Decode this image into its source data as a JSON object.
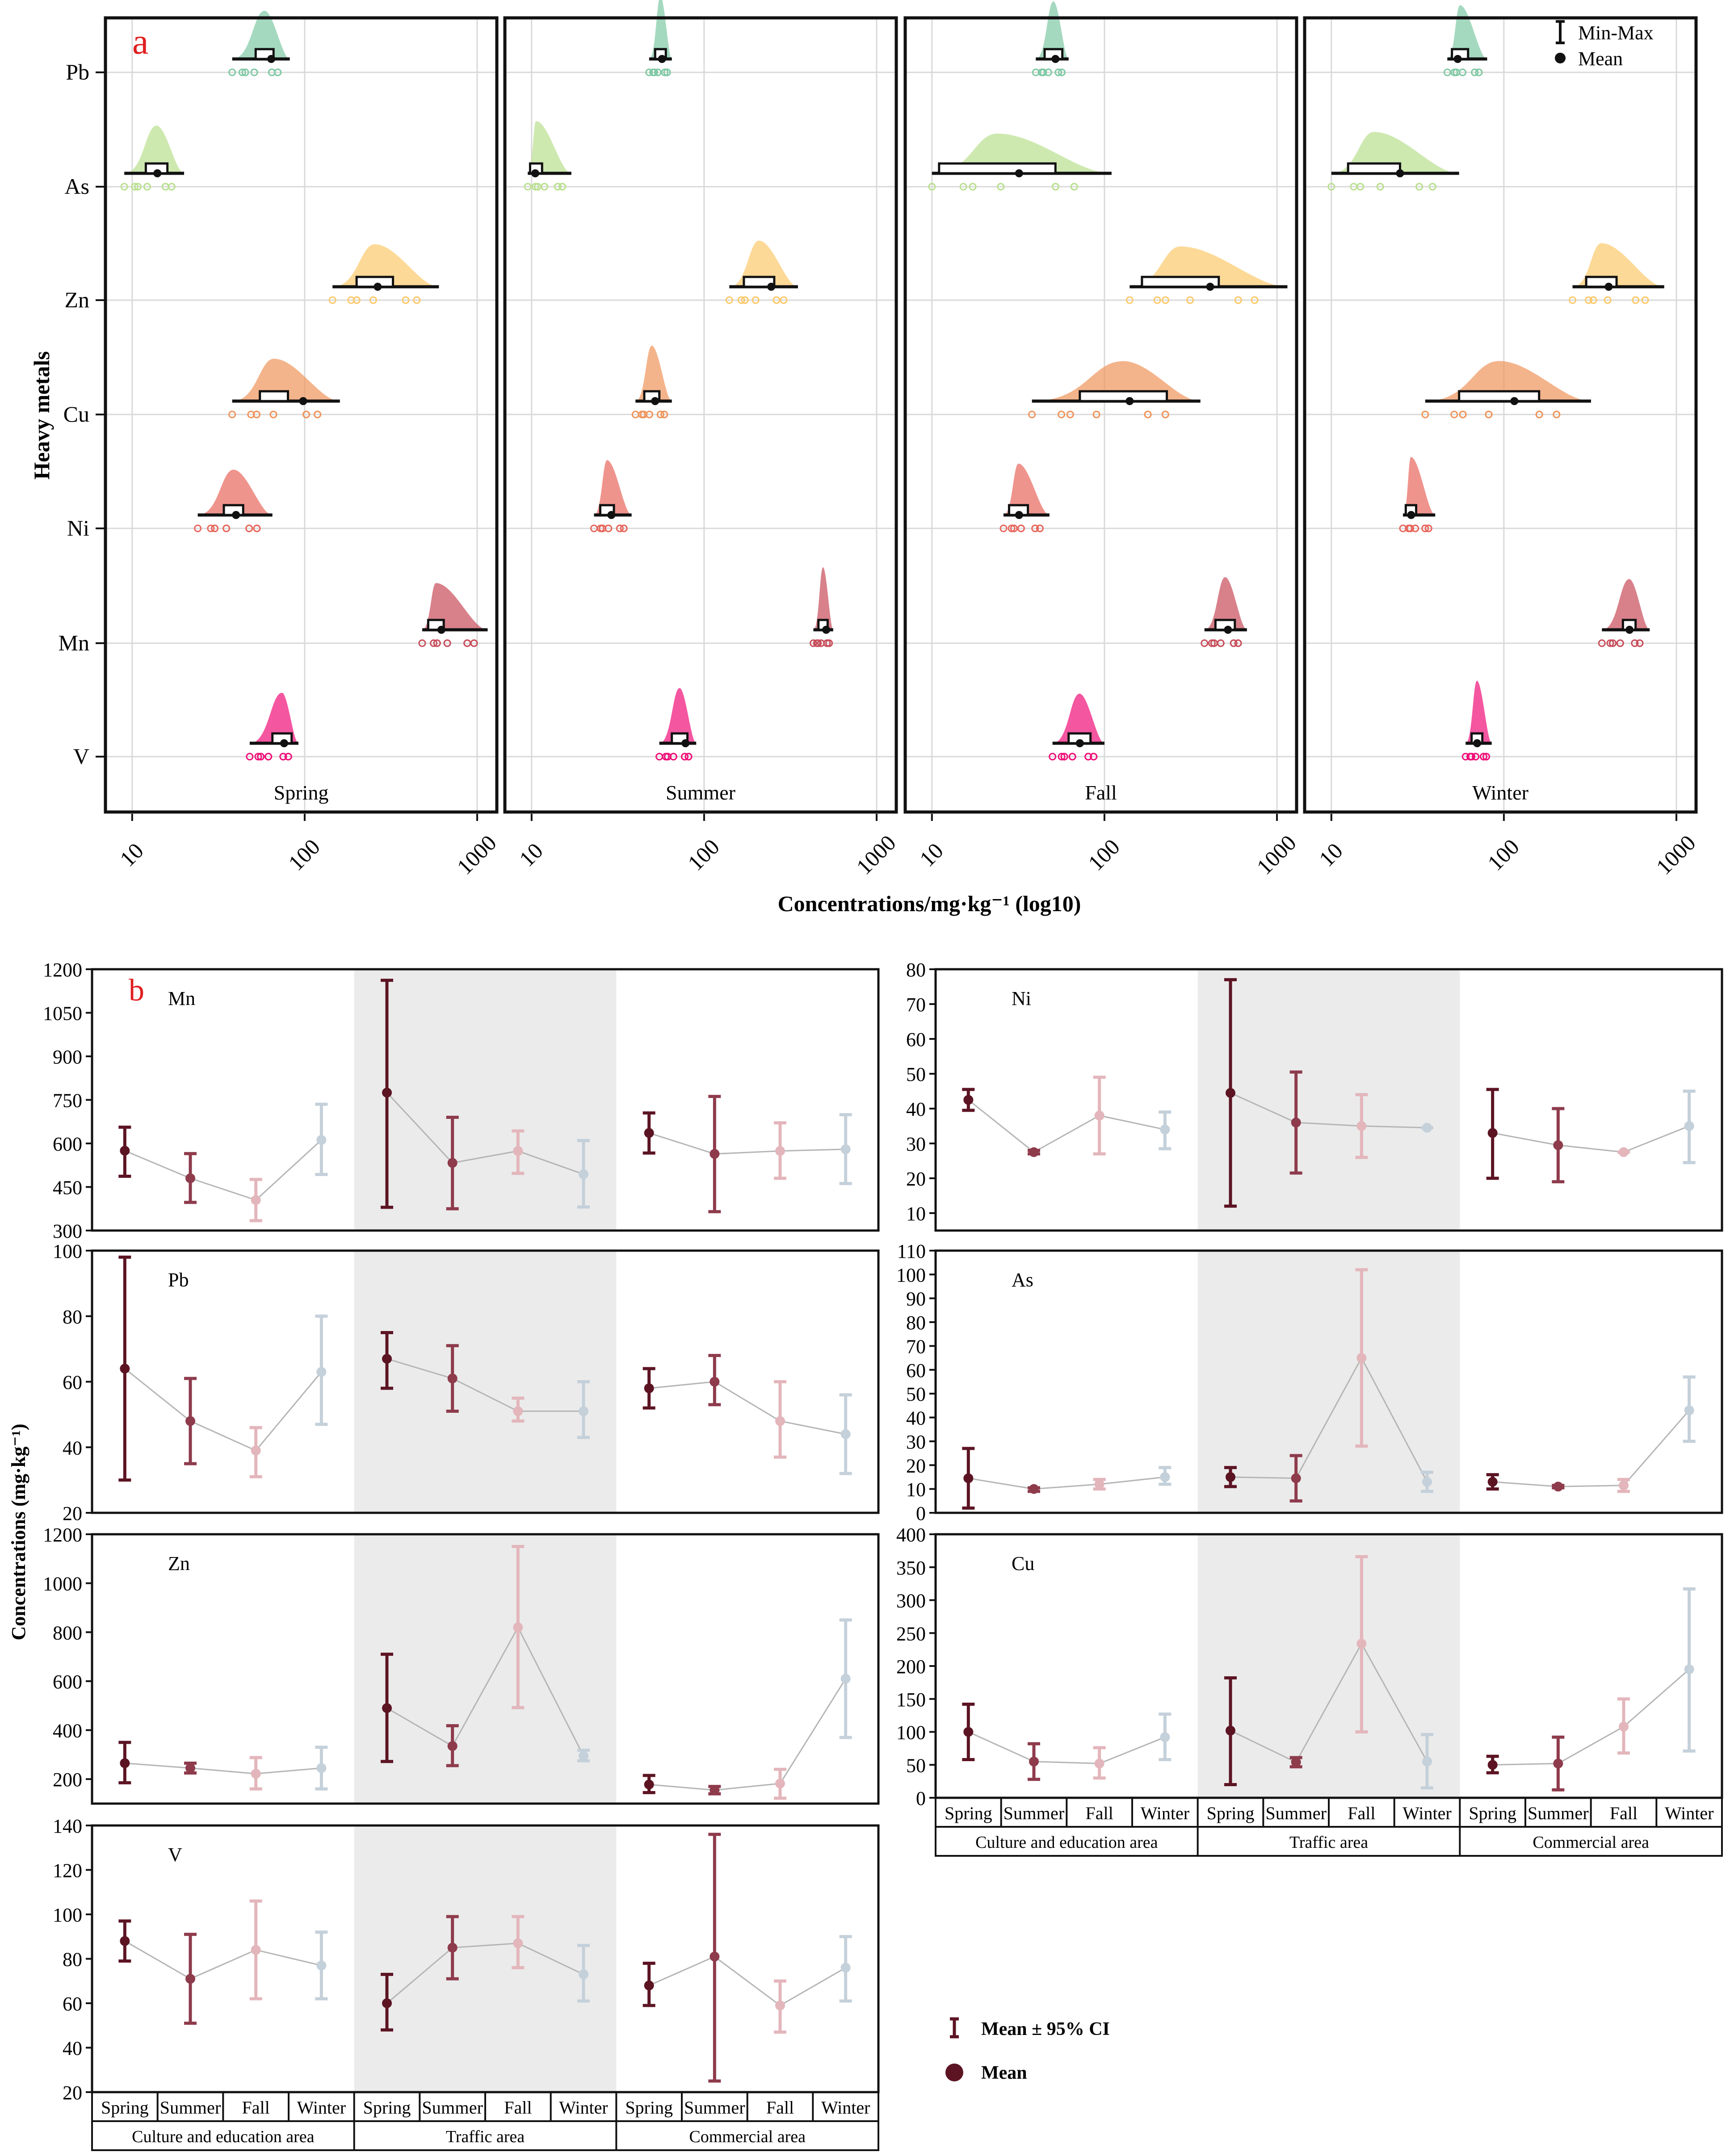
{
  "panel_a": {
    "letter": "a",
    "ylabel": "Heavy metals",
    "xlabel": "Concentrations/mg·kg⁻¹ (log10)",
    "xticks": [
      10,
      100,
      1000
    ],
    "legend": {
      "minmax": "Min-Max",
      "mean": "Mean"
    }
  },
  "panel_b": {
    "letter": "b",
    "ylabel": "Concentrations (mg·kg⁻¹)",
    "seasons": [
      "Spring",
      "Summer",
      "Fall",
      "Winter"
    ],
    "areas": [
      "Culture and education area",
      "Traffic area",
      "Commercial area"
    ],
    "legend": {
      "ci": "Mean ± 95% CI",
      "mean": "Mean"
    }
  },
  "chart_data": [
    {
      "type": "raincloud",
      "panel": "a",
      "metals": [
        "Pb",
        "As",
        "Zn",
        "Cu",
        "Ni",
        "Mn",
        "V"
      ],
      "seasons": [
        "Spring",
        "Summer",
        "Fall",
        "Winter"
      ],
      "xscale": "log10",
      "xlim": [
        7,
        1300
      ],
      "colors": {
        "Pb": "#7fc9a4",
        "As": "#b9e08f",
        "Zn": "#fcc96b",
        "Cu": "#f0945a",
        "Ni": "#e8665c",
        "Mn": "#c84c5a",
        "V": "#f00e78"
      },
      "series": [
        {
          "name": "Spring",
          "data": {
            "Pb": {
              "min": 38,
              "max": 82,
              "q1": 52,
              "q3": 66,
              "mean": 64
            },
            "As": {
              "min": 9,
              "max": 20,
              "q1": 12,
              "q3": 16,
              "mean": 14
            },
            "Zn": {
              "min": 145,
              "max": 600,
              "q1": 200,
              "q3": 325,
              "mean": 265
            },
            "Cu": {
              "min": 38,
              "max": 160,
              "q1": 55,
              "q3": 80,
              "mean": 98
            },
            "Ni": {
              "min": 24,
              "max": 65,
              "q1": 34,
              "q3": 44,
              "mean": 40
            },
            "Mn": {
              "min": 480,
              "max": 1150,
              "q1": 520,
              "q3": 640,
              "mean": 620
            },
            "V": {
              "min": 48,
              "max": 92,
              "q1": 65,
              "q3": 84,
              "mean": 76
            }
          }
        },
        {
          "name": "Summer",
          "data": {
            "Pb": {
              "min": 48,
              "max": 65,
              "q1": 52,
              "q3": 60,
              "mean": 57
            },
            "As": {
              "min": 9.5,
              "max": 17,
              "q1": 9.8,
              "q3": 11.5,
              "mean": 10.5
            },
            "Zn": {
              "min": 140,
              "max": 350,
              "q1": 170,
              "q3": 255,
              "mean": 245
            },
            "Cu": {
              "min": 40,
              "max": 65,
              "q1": 45,
              "q3": 55,
              "mean": 52
            },
            "Ni": {
              "min": 23,
              "max": 38,
              "q1": 25,
              "q3": 30,
              "mean": 29
            },
            "Mn": {
              "min": 430,
              "max": 560,
              "q1": 460,
              "q3": 520,
              "mean": 510
            },
            "V": {
              "min": 55,
              "max": 90,
              "q1": 65,
              "q3": 80,
              "mean": 78
            }
          }
        },
        {
          "name": "Fall",
          "data": {
            "Pb": {
              "min": 40,
              "max": 62,
              "q1": 45,
              "q3": 57,
              "mean": 52
            },
            "As": {
              "min": 10,
              "max": 110,
              "q1": 11,
              "q3": 52,
              "mean": 32
            },
            "Zn": {
              "min": 140,
              "max": 1150,
              "q1": 165,
              "q3": 460,
              "mean": 410
            },
            "Cu": {
              "min": 38,
              "max": 360,
              "q1": 72,
              "q3": 230,
              "mean": 140
            },
            "Ni": {
              "min": 26,
              "max": 48,
              "q1": 28,
              "q3": 36,
              "mean": 32
            },
            "Mn": {
              "min": 380,
              "max": 670,
              "q1": 440,
              "q3": 570,
              "mean": 520
            },
            "V": {
              "min": 50,
              "max": 100,
              "q1": 62,
              "q3": 83,
              "mean": 72
            }
          }
        },
        {
          "name": "Winter",
          "data": {
            "Pb": {
              "min": 47,
              "max": 80,
              "q1": 50,
              "q3": 62,
              "mean": 54
            },
            "As": {
              "min": 10,
              "max": 55,
              "q1": 12.5,
              "q3": 25,
              "mean": 25
            },
            "Zn": {
              "min": 250,
              "max": 850,
              "q1": 300,
              "q3": 450,
              "mean": 405
            },
            "Cu": {
              "min": 35,
              "max": 320,
              "q1": 55,
              "q3": 160,
              "mean": 115
            },
            "Ni": {
              "min": 26,
              "max": 40,
              "q1": 27,
              "q3": 31,
              "mean": 29
            },
            "Mn": {
              "min": 370,
              "max": 700,
              "q1": 490,
              "q3": 580,
              "mean": 535
            },
            "V": {
              "min": 60,
              "max": 85,
              "q1": 65,
              "q3": 75,
              "mean": 70
            }
          }
        }
      ]
    },
    {
      "type": "errorbar",
      "panel": "b",
      "subplot": "Mn",
      "ylim": [
        300,
        1200
      ],
      "yticks": [
        300,
        450,
        600,
        750,
        900,
        1050,
        1200
      ],
      "series": [
        {
          "name": "Culture and education area",
          "mean": [
            575,
            480,
            405,
            612
          ],
          "low": [
            487,
            397,
            334,
            493
          ],
          "high": [
            656,
            565,
            476,
            735
          ]
        },
        {
          "name": "Traffic area",
          "mean": [
            775,
            533,
            574,
            494
          ],
          "low": [
            380,
            375,
            497,
            381
          ],
          "high": [
            1162,
            690,
            643,
            610
          ]
        },
        {
          "name": "Commercial area",
          "mean": [
            636,
            564,
            574,
            580
          ],
          "low": [
            567,
            365,
            480,
            462
          ],
          "high": [
            705,
            762,
            671,
            699
          ]
        }
      ]
    },
    {
      "type": "errorbar",
      "panel": "b",
      "subplot": "Ni",
      "ylim": [
        5,
        80
      ],
      "yticks": [
        10,
        20,
        30,
        40,
        50,
        60,
        70,
        80
      ],
      "series": [
        {
          "name": "Culture and education area",
          "mean": [
            42.5,
            27.5,
            38,
            34
          ],
          "low": [
            39.5,
            27,
            27,
            28.5
          ],
          "high": [
            45.5,
            28,
            49,
            39
          ]
        },
        {
          "name": "Traffic area",
          "mean": [
            44.5,
            36,
            35,
            34.5
          ],
          "low": [
            12,
            21.5,
            26,
            34.5
          ],
          "high": [
            77,
            50.5,
            44,
            34.5
          ]
        },
        {
          "name": "Commercial area",
          "mean": [
            33,
            29.5,
            27.5,
            35
          ],
          "low": [
            20,
            19,
            27.5,
            24.5
          ],
          "high": [
            45.5,
            40,
            27.5,
            45
          ]
        }
      ]
    },
    {
      "type": "errorbar",
      "panel": "b",
      "subplot": "Pb",
      "ylim": [
        20,
        100
      ],
      "yticks": [
        20,
        40,
        60,
        80,
        100
      ],
      "series": [
        {
          "name": "Culture and education area",
          "mean": [
            64,
            48,
            39,
            63
          ],
          "low": [
            30,
            35,
            31,
            47
          ],
          "high": [
            98,
            61,
            46,
            80
          ]
        },
        {
          "name": "Traffic area",
          "mean": [
            67,
            61,
            51,
            51
          ],
          "low": [
            58,
            51,
            48,
            43
          ],
          "high": [
            75,
            71,
            55,
            60
          ]
        },
        {
          "name": "Commercial area",
          "mean": [
            58,
            60,
            48,
            44
          ],
          "low": [
            52,
            53,
            37,
            32
          ],
          "high": [
            64,
            68,
            60,
            56
          ]
        }
      ]
    },
    {
      "type": "errorbar",
      "panel": "b",
      "subplot": "As",
      "ylim": [
        0,
        110
      ],
      "yticks": [
        0,
        10,
        20,
        30,
        40,
        50,
        60,
        70,
        80,
        90,
        100,
        110
      ],
      "series": [
        {
          "name": "Culture and education area",
          "mean": [
            14.5,
            10,
            12,
            15
          ],
          "low": [
            2,
            9,
            10,
            12
          ],
          "high": [
            27,
            10.5,
            14,
            19
          ]
        },
        {
          "name": "Traffic area",
          "mean": [
            15,
            14.5,
            65,
            13
          ],
          "low": [
            11,
            5,
            28,
            9
          ],
          "high": [
            19,
            24,
            102,
            17
          ]
        },
        {
          "name": "Commercial area",
          "mean": [
            13,
            11,
            11.5,
            43
          ],
          "low": [
            10,
            10.5,
            9,
            30
          ],
          "high": [
            16,
            11.5,
            14,
            57
          ]
        }
      ]
    },
    {
      "type": "errorbar",
      "panel": "b",
      "subplot": "Zn",
      "ylim": [
        100,
        1200
      ],
      "yticks": [
        200,
        400,
        600,
        800,
        1000,
        1200
      ],
      "series": [
        {
          "name": "Culture and education area",
          "mean": [
            265,
            245,
            222,
            245
          ],
          "low": [
            185,
            225,
            160,
            160
          ],
          "high": [
            350,
            265,
            288,
            330
          ]
        },
        {
          "name": "Traffic area",
          "mean": [
            490,
            335,
            820,
            295
          ],
          "low": [
            272,
            255,
            492,
            275
          ],
          "high": [
            710,
            418,
            1150,
            318
          ]
        },
        {
          "name": "Commercial area",
          "mean": [
            178,
            155,
            182,
            610
          ],
          "low": [
            145,
            140,
            122,
            370
          ],
          "high": [
            215,
            170,
            240,
            850
          ]
        }
      ]
    },
    {
      "type": "errorbar",
      "panel": "b",
      "subplot": "Cu",
      "ylim": [
        0,
        400
      ],
      "yticks": [
        0,
        50,
        100,
        150,
        200,
        250,
        300,
        350,
        400
      ],
      "series": [
        {
          "name": "Culture and education area",
          "mean": [
            100,
            55,
            52,
            92
          ],
          "low": [
            58,
            28,
            30,
            58
          ],
          "high": [
            142,
            82,
            76,
            127
          ]
        },
        {
          "name": "Traffic area",
          "mean": [
            102,
            54,
            234,
            55
          ],
          "low": [
            20,
            47,
            100,
            15
          ],
          "high": [
            182,
            61,
            366,
            96
          ]
        },
        {
          "name": "Commercial area",
          "mean": [
            50,
            52,
            108,
            195
          ],
          "low": [
            38,
            12,
            68,
            71
          ],
          "high": [
            63,
            92,
            150,
            317
          ]
        }
      ]
    },
    {
      "type": "errorbar",
      "panel": "b",
      "subplot": "V",
      "ylim": [
        20,
        140
      ],
      "yticks": [
        20,
        40,
        60,
        80,
        100,
        120,
        140
      ],
      "series": [
        {
          "name": "Culture and education area",
          "mean": [
            88,
            71,
            84,
            77
          ],
          "low": [
            79,
            51,
            62,
            62
          ],
          "high": [
            97,
            91,
            106,
            92
          ]
        },
        {
          "name": "Traffic area",
          "mean": [
            60,
            85,
            87,
            73
          ],
          "low": [
            48,
            71,
            76,
            61
          ],
          "high": [
            73,
            99,
            99,
            86
          ]
        },
        {
          "name": "Commercial area",
          "mean": [
            68,
            81,
            59,
            76
          ],
          "low": [
            59,
            25,
            47,
            61
          ],
          "high": [
            78,
            136,
            70,
            90
          ]
        }
      ]
    }
  ]
}
